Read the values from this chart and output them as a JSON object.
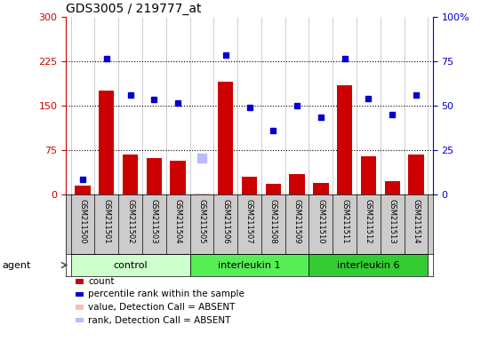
{
  "title": "GDS3005 / 219777_at",
  "samples": [
    "GSM211500",
    "GSM211501",
    "GSM211502",
    "GSM211503",
    "GSM211504",
    "GSM211505",
    "GSM211506",
    "GSM211507",
    "GSM211508",
    "GSM211509",
    "GSM211510",
    "GSM211511",
    "GSM211512",
    "GSM211513",
    "GSM211514"
  ],
  "counts": [
    15,
    175,
    68,
    62,
    57,
    2,
    190,
    30,
    18,
    35,
    20,
    185,
    65,
    22,
    68
  ],
  "percentile_ranks": [
    25,
    230,
    168,
    160,
    155,
    null,
    235,
    147,
    108,
    150,
    130,
    230,
    162,
    135,
    168
  ],
  "absent_value": [
    null,
    null,
    null,
    null,
    null,
    2,
    null,
    null,
    null,
    null,
    null,
    null,
    null,
    null,
    null
  ],
  "absent_rank": [
    null,
    null,
    null,
    null,
    null,
    62,
    null,
    null,
    null,
    null,
    null,
    null,
    null,
    null,
    null
  ],
  "bar_color": "#cc0000",
  "dot_color": "#0000cc",
  "absent_val_color": "#ffbbbb",
  "absent_rank_color": "#bbbbff",
  "groups": [
    {
      "label": "control",
      "start": 0,
      "end": 4,
      "color": "#ccffcc"
    },
    {
      "label": "interleukin 1",
      "start": 5,
      "end": 9,
      "color": "#66ee66"
    },
    {
      "label": "interleukin 6",
      "start": 10,
      "end": 14,
      "color": "#33cc33"
    }
  ],
  "ylim_left": [
    0,
    300
  ],
  "ylim_right": [
    0,
    100
  ],
  "yticks_left": [
    0,
    75,
    150,
    225,
    300
  ],
  "yticks_right": [
    0,
    25,
    50,
    75,
    100
  ],
  "hlines": [
    75,
    150,
    225
  ],
  "agent_label": "agent",
  "legend_items": [
    {
      "label": "count",
      "color": "#cc0000"
    },
    {
      "label": "percentile rank within the sample",
      "color": "#0000cc"
    },
    {
      "label": "value, Detection Call = ABSENT",
      "color": "#ffbbbb"
    },
    {
      "label": "rank, Detection Call = ABSENT",
      "color": "#bbbbff"
    }
  ],
  "sample_bg": "#cccccc",
  "plot_bg": "#ffffff"
}
